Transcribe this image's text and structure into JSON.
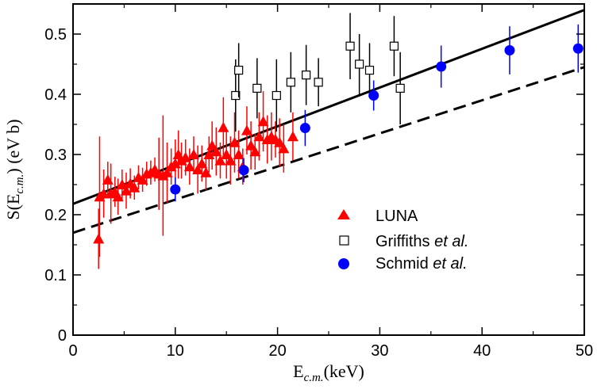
{
  "chart_data": {
    "type": "scatter",
    "title": "",
    "xlabel": {
      "main": "E",
      "sub": "c.m.",
      "unit": "(keV)"
    },
    "ylabel": {
      "main": "S(E",
      "sub": "c.m.",
      "unit": ") (eV b)"
    },
    "xlim": [
      0,
      50
    ],
    "ylim": [
      0,
      0.55
    ],
    "xticks": [
      0,
      10,
      20,
      30,
      40,
      50
    ],
    "yticks": [
      0,
      0.1,
      0.2,
      0.3,
      0.4,
      0.5
    ],
    "xtick_labels": [
      "0",
      "10",
      "20",
      "30",
      "40",
      "50"
    ],
    "ytick_labels": [
      "0",
      "0.1",
      "0.2",
      "0.3",
      "0.4",
      "0.5"
    ],
    "grid": false,
    "legend_position": "center-right",
    "colors": {
      "luna": "#ff0000",
      "griffiths": "#000000",
      "schmid": "#0000ff",
      "lines": "#000000"
    },
    "series": [
      {
        "name": "LUNA",
        "name_suffix": "",
        "marker": "triangle",
        "x": [
          2.5,
          2.6,
          3.0,
          3.4,
          3.7,
          4.1,
          4.4,
          4.8,
          5.2,
          5.6,
          6.0,
          6.4,
          6.8,
          7.2,
          7.6,
          8.0,
          8.4,
          8.8,
          9.2,
          9.6,
          10.0,
          10.3,
          10.6,
          11.0,
          11.4,
          11.8,
          12.2,
          12.6,
          13.0,
          13.3,
          13.6,
          14.0,
          14.4,
          14.7,
          15.0,
          15.4,
          15.8,
          16.2,
          16.6,
          17.0,
          17.4,
          17.8,
          18.2,
          18.6,
          19.0,
          19.4,
          19.8,
          20.2,
          20.6,
          21.5
        ],
        "y": [
          0.16,
          0.23,
          0.235,
          0.258,
          0.235,
          0.238,
          0.23,
          0.25,
          0.24,
          0.252,
          0.245,
          0.262,
          0.258,
          0.268,
          0.27,
          0.275,
          0.268,
          0.265,
          0.27,
          0.28,
          0.285,
          0.3,
          0.29,
          0.295,
          0.28,
          0.3,
          0.275,
          0.285,
          0.27,
          0.3,
          0.315,
          0.305,
          0.29,
          0.345,
          0.3,
          0.29,
          0.32,
          0.3,
          0.28,
          0.34,
          0.315,
          0.305,
          0.33,
          0.355,
          0.325,
          0.33,
          0.325,
          0.32,
          0.31,
          0.33
        ],
        "err": [
          0.05,
          0.1,
          0.04,
          0.03,
          0.05,
          0.025,
          0.03,
          0.025,
          0.03,
          0.025,
          0.02,
          0.02,
          0.02,
          0.02,
          0.02,
          0.02,
          0.06,
          0.1,
          0.05,
          0.03,
          0.04,
          0.04,
          0.03,
          0.03,
          0.03,
          0.03,
          0.04,
          0.03,
          0.03,
          0.03,
          0.04,
          0.04,
          0.03,
          0.05,
          0.04,
          0.04,
          0.05,
          0.04,
          0.03,
          0.04,
          0.04,
          0.03,
          0.04,
          0.05,
          0.04,
          0.04,
          0.03,
          0.04,
          0.04,
          0.04
        ]
      },
      {
        "name": "Griffiths",
        "name_suffix": "et al.",
        "marker": "square-open",
        "x": [
          15.9,
          16.2,
          18.0,
          19.9,
          21.3,
          22.8,
          24.0,
          27.1,
          28.0,
          29.0,
          31.4,
          32.0
        ],
        "y": [
          0.398,
          0.44,
          0.41,
          0.398,
          0.42,
          0.432,
          0.42,
          0.48,
          0.45,
          0.44,
          0.48,
          0.41
        ],
        "err": [
          0.06,
          0.045,
          0.05,
          0.06,
          0.05,
          0.05,
          0.04,
          0.055,
          0.05,
          0.045,
          0.05,
          0.06
        ]
      },
      {
        "name": "Schmid",
        "name_suffix": "et al.",
        "marker": "circle",
        "x": [
          10.0,
          16.7,
          22.7,
          29.4,
          36.0,
          42.7,
          49.4
        ],
        "y": [
          0.242,
          0.274,
          0.344,
          0.398,
          0.446,
          0.473,
          0.476
        ],
        "err": [
          0.02,
          0.02,
          0.03,
          0.025,
          0.035,
          0.04,
          0.04
        ]
      }
    ],
    "lines": [
      {
        "name": "fit-solid",
        "style": "solid",
        "x": [
          0,
          50
        ],
        "y": [
          0.218,
          0.54
        ]
      },
      {
        "name": "fit-dashed",
        "style": "dashed",
        "x": [
          0,
          50
        ],
        "y": [
          0.17,
          0.445
        ]
      }
    ]
  }
}
